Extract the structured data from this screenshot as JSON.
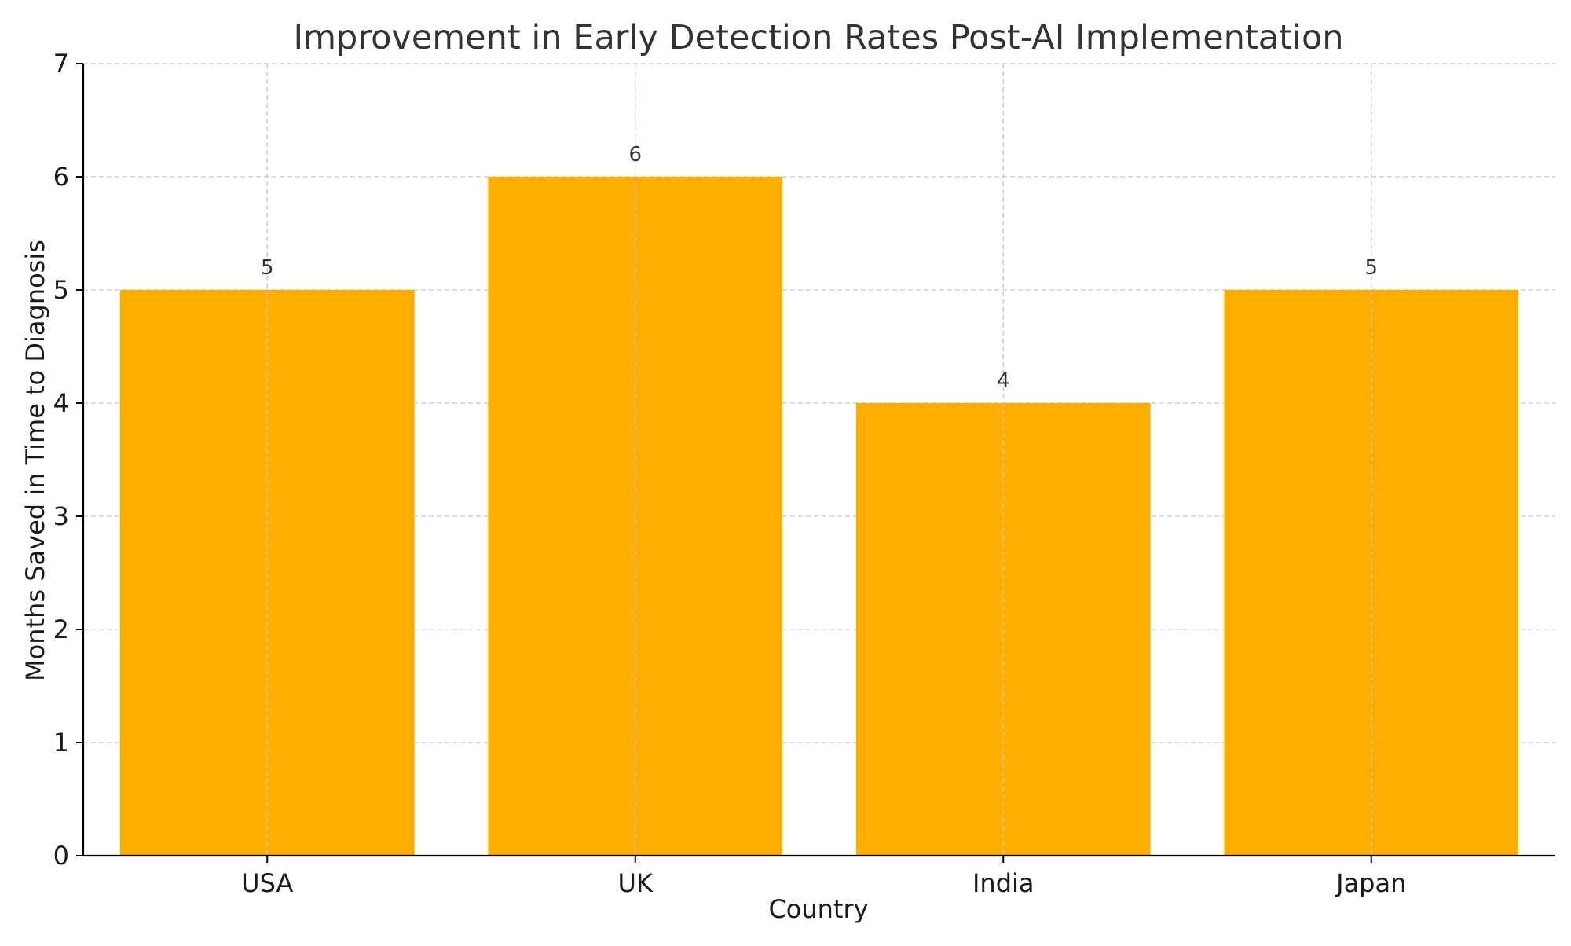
{
  "chart_data": {
    "type": "bar",
    "title": "Improvement in Early Detection Rates Post-AI Implementation",
    "xlabel": "Country",
    "ylabel": "Months Saved in Time to Diagnosis",
    "categories": [
      "USA",
      "UK",
      "India",
      "Japan"
    ],
    "values": [
      5,
      6,
      4,
      5
    ],
    "data_labels": [
      "5",
      "6",
      "4",
      "5"
    ],
    "ylim": [
      0,
      7
    ],
    "yticks": [
      0,
      1,
      2,
      3,
      4,
      5,
      6,
      7
    ],
    "ytick_labels": [
      "0",
      "1",
      "2",
      "3",
      "4",
      "5",
      "6",
      "7"
    ],
    "grid": true,
    "legend": "none",
    "colors": {
      "bar": "#FFAE00",
      "grid": "#c8c8c8",
      "axis": "#000000"
    }
  }
}
